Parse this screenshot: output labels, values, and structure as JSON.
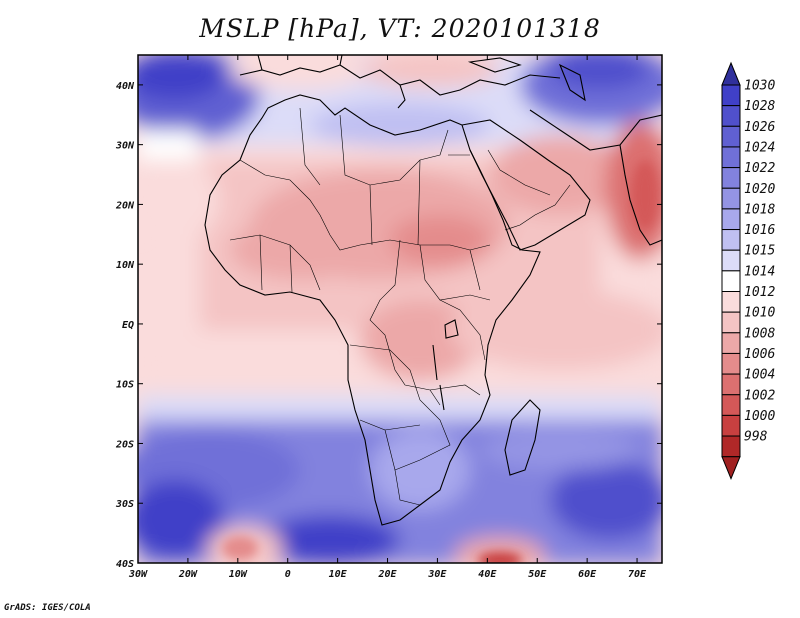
{
  "title": "MSLP [hPa], VT: 2020101318",
  "footer": "GrADS: IGES/COLA",
  "map": {
    "lon_range": [
      -30,
      75
    ],
    "lat_range": [
      -40,
      45
    ],
    "x_ticks": [
      "30W",
      "20W",
      "10W",
      "0",
      "10E",
      "20E",
      "30E",
      "40E",
      "50E",
      "60E",
      "70E"
    ],
    "y_ticks": [
      "40N",
      "30N",
      "20N",
      "10N",
      "EQ",
      "10S",
      "20S",
      "30S",
      "40S"
    ]
  },
  "colorbar": {
    "levels": [
      "1030",
      "1028",
      "1026",
      "1024",
      "1022",
      "1020",
      "1018",
      "1016",
      "1015",
      "1014",
      "1012",
      "1010",
      "1008",
      "1006",
      "1004",
      "1002",
      "1000",
      "998"
    ],
    "colors": [
      "#4040c8",
      "#5050cc",
      "#6060d2",
      "#7070d8",
      "#8282de",
      "#9494e4",
      "#a8a8ec",
      "#c0c0f2",
      "#dcdcf8",
      "#ffffff",
      "#fadcdc",
      "#f4c4c4",
      "#eca8a8",
      "#e48c8c",
      "#dc7070",
      "#d45858",
      "#c84040",
      "#b02828"
    ],
    "cap_top_color": "#30309c",
    "cap_bottom_color": "#a02020"
  }
}
